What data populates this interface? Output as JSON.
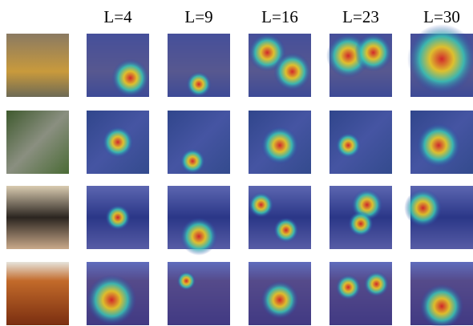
{
  "columns": [
    "L=4",
    "L=9",
    "L=16",
    "L=23",
    "L=30"
  ]
}
